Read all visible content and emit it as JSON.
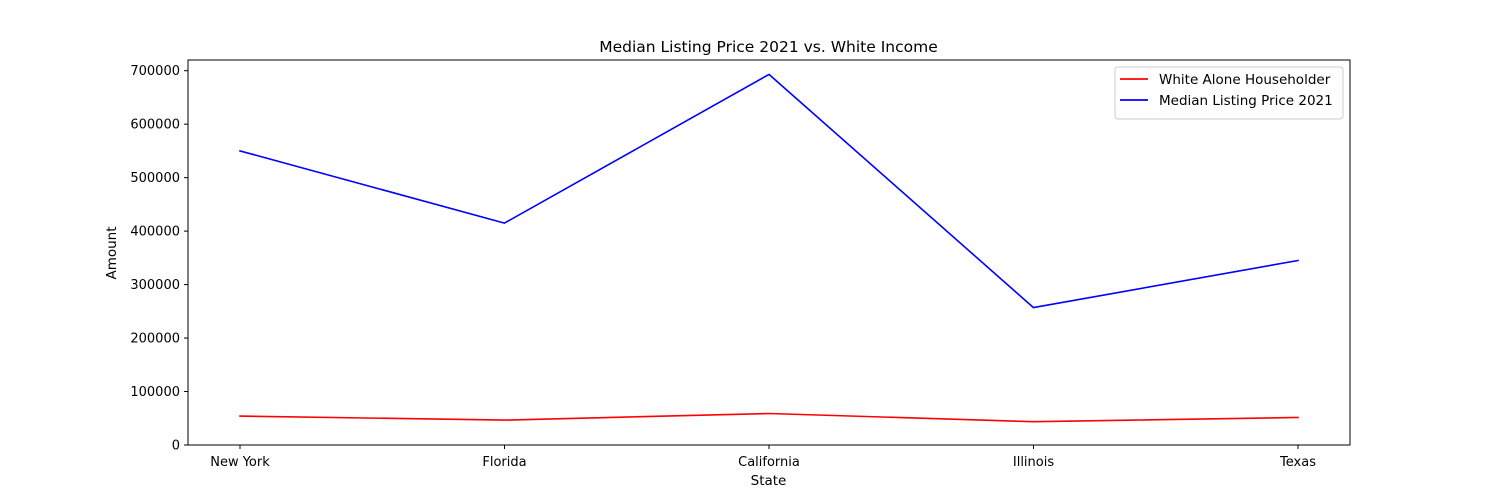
{
  "chart_data": {
    "type": "line",
    "title": "Median Listing Price 2021 vs. White Income",
    "xlabel": "State",
    "ylabel": "Amount",
    "categories": [
      "New York",
      "Florida",
      "California",
      "Illinois",
      "Texas"
    ],
    "ylim": [
      0,
      720000
    ],
    "yticks": [
      0,
      100000,
      200000,
      300000,
      400000,
      500000,
      600000,
      700000
    ],
    "grid": false,
    "legend_position": "top-right",
    "series": [
      {
        "name": "White Alone Householder",
        "color": "#ff0000",
        "values": [
          54000,
          46500,
          59000,
          43500,
          51500
        ]
      },
      {
        "name": "Median Listing Price 2021",
        "color": "#0000ff",
        "values": [
          550000,
          415000,
          693000,
          257000,
          345000
        ]
      }
    ]
  }
}
